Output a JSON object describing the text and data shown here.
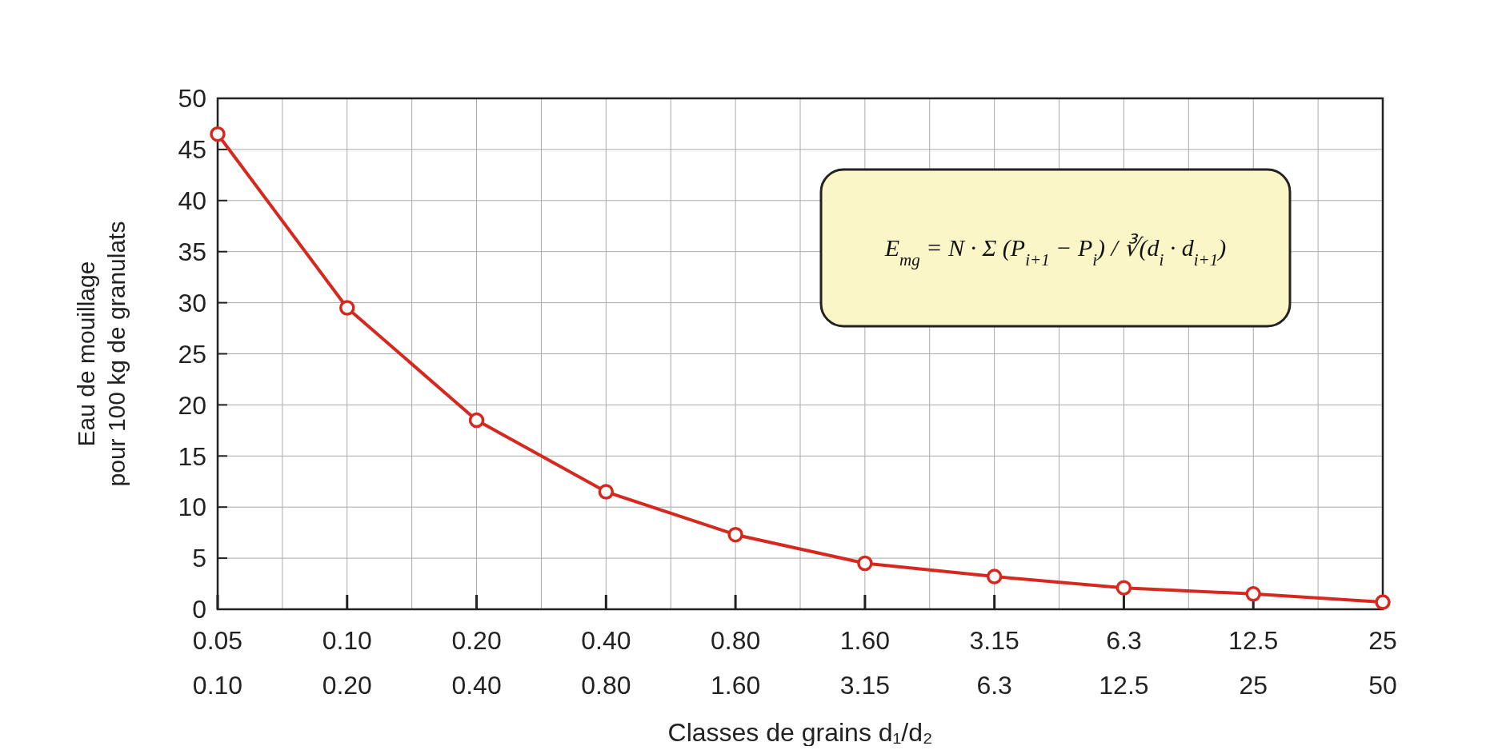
{
  "chart_data": {
    "type": "line",
    "xlabel": "Classes de grains d₁/d₂",
    "ylabel": "Eau de mouillage\npour 100 kg de granulats",
    "categories": [
      "0.05\n0.10",
      "0.10\n0.20",
      "0.20\n0.40",
      "0.40\n0.80",
      "0.80\n1.60",
      "1.60\n3.15",
      "3.15\n6.3",
      "6.3\n12.5",
      "12.5\n25",
      "25\n50"
    ],
    "series": [
      {
        "color": "#d6281e",
        "values": [
          46.5,
          29.5,
          18.5,
          11.5,
          7.3,
          4.5,
          3.2,
          2.1,
          1.5,
          0.7
        ]
      }
    ],
    "ylim": [
      0,
      50
    ],
    "yticks": [
      0,
      5,
      10,
      15,
      20,
      25,
      30,
      35,
      40,
      45,
      50
    ],
    "grid": true,
    "marker": "circle",
    "line_style": "solid",
    "annotations": [
      "E$_{mg}$ = N · Σ (P$_{i+1}$ − P$_{i}$) / ∛(d$_{i}$ · d$_{i+1}$)"
    ]
  }
}
